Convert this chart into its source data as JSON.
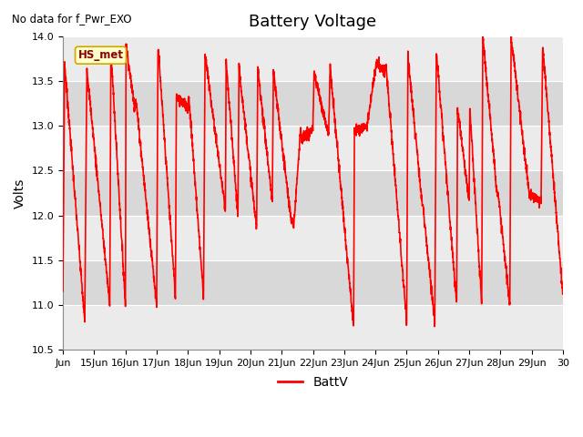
{
  "title": "Battery Voltage",
  "ylabel": "Volts",
  "ylim": [
    10.5,
    14.0
  ],
  "yticks": [
    10.5,
    11.0,
    11.5,
    12.0,
    12.5,
    13.0,
    13.5,
    14.0
  ],
  "no_data_text": "No data for f_Pwr_EXO",
  "hs_met_label": "HS_met",
  "legend_label": "BattV",
  "line_color": "#ff0000",
  "line_width": 1.2,
  "bg_color": "#ffffff",
  "plot_bg_color": "#ebebeb",
  "stripe_color_light": "#e0e0e0",
  "stripe_color_dark": "#d0d0d0",
  "title_fontsize": 13,
  "label_fontsize": 10,
  "tick_fontsize": 8,
  "x_start": 14.0,
  "x_end": 30.0,
  "x_tick_days": [
    14,
    15,
    16,
    17,
    18,
    19,
    20,
    21,
    22,
    23,
    24,
    25,
    26,
    27,
    28,
    29,
    30
  ],
  "x_tick_labels": [
    "Jun",
    "15Jun",
    "16Jun",
    "17Jun",
    "18Jun",
    "19Jun",
    "20Jun",
    "21Jun",
    "22Jun",
    "23Jun",
    "24Jun",
    "25Jun",
    "26Jun",
    "27Jun",
    "28Jun",
    "29Jun",
    "30"
  ]
}
